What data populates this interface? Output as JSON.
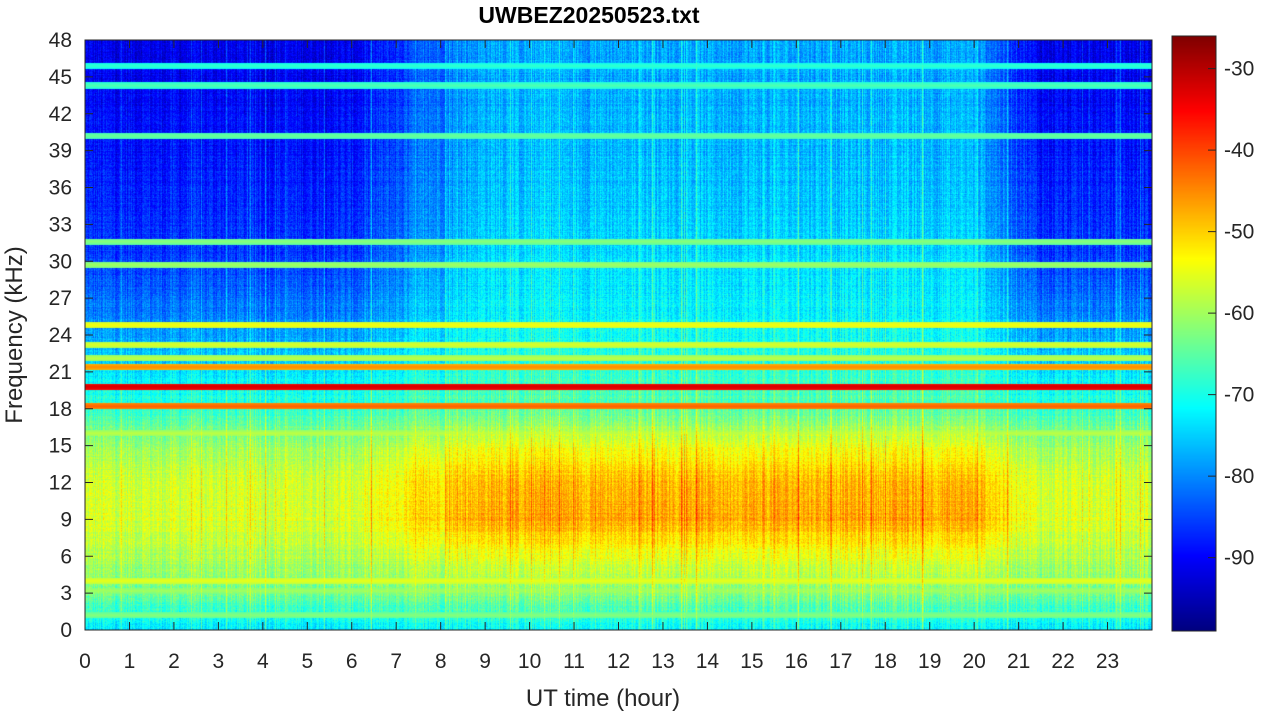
{
  "chart_data": {
    "type": "heatmap",
    "title": "UWBEZ20250523.txt",
    "xlabel": "UT time (hour)",
    "ylabel": "Frequency (kHz)",
    "xlim": [
      0,
      24
    ],
    "ylim": [
      0,
      48
    ],
    "x_ticks": [
      "0",
      "1",
      "2",
      "3",
      "4",
      "5",
      "6",
      "7",
      "8",
      "9",
      "10",
      "11",
      "12",
      "13",
      "14",
      "15",
      "16",
      "17",
      "18",
      "19",
      "20",
      "21",
      "22",
      "23"
    ],
    "y_ticks": [
      "0",
      "3",
      "6",
      "9",
      "12",
      "15",
      "18",
      "21",
      "24",
      "27",
      "30",
      "33",
      "36",
      "39",
      "42",
      "45",
      "48"
    ],
    "colorbar": {
      "colormap": "jet",
      "clim": [
        -99,
        -26
      ],
      "ticks": [
        "-30",
        "-40",
        "-50",
        "-60",
        "-70",
        "-80",
        "-90"
      ]
    },
    "background_spectrum_dB": [
      {
        "freq_kHz": 0,
        "day": -72,
        "night": -74
      },
      {
        "freq_kHz": 3,
        "day": -62,
        "night": -64
      },
      {
        "freq_kHz": 6,
        "day": -55,
        "night": -60
      },
      {
        "freq_kHz": 9,
        "day": -47,
        "night": -58
      },
      {
        "freq_kHz": 12,
        "day": -48,
        "night": -58
      },
      {
        "freq_kHz": 15,
        "day": -55,
        "night": -62
      },
      {
        "freq_kHz": 17,
        "day": -62,
        "night": -66
      },
      {
        "freq_kHz": 18.5,
        "day": -66,
        "night": -70
      },
      {
        "freq_kHz": 24,
        "day": -71,
        "night": -80
      },
      {
        "freq_kHz": 30,
        "day": -74,
        "night": -88
      },
      {
        "freq_kHz": 36,
        "day": -76,
        "night": -90
      },
      {
        "freq_kHz": 42,
        "day": -77,
        "night": -92
      },
      {
        "freq_kHz": 48,
        "day": -78,
        "night": -94
      }
    ],
    "daytime_window_UT": [
      9,
      20
    ],
    "transmitter_lines_kHz": [
      {
        "freq": 19.8,
        "level": -32
      },
      {
        "freq": 18.2,
        "level": -42
      },
      {
        "freq": 21.4,
        "level": -45
      },
      {
        "freq": 24.8,
        "level": -54
      },
      {
        "freq": 23.2,
        "level": -56
      },
      {
        "freq": 22.1,
        "level": -58
      },
      {
        "freq": 4.0,
        "level": -55
      },
      {
        "freq": 3.2,
        "level": -60
      },
      {
        "freq": 1.2,
        "level": -62
      },
      {
        "freq": 8.1,
        "level": -60
      },
      {
        "freq": 16.0,
        "level": -58
      },
      {
        "freq": 29.7,
        "level": -60
      },
      {
        "freq": 31.6,
        "level": -62
      },
      {
        "freq": 44.3,
        "level": -66
      },
      {
        "freq": 45.9,
        "level": -68
      },
      {
        "freq": 40.2,
        "level": -64
      }
    ]
  }
}
